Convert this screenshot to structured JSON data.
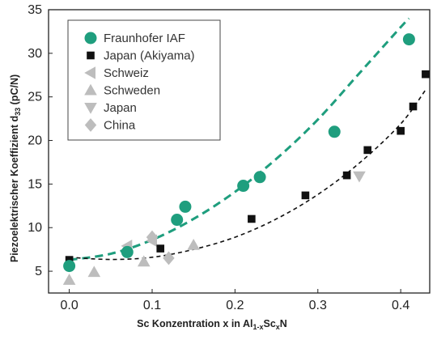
{
  "chart_data": {
    "type": "scatter",
    "xlabel": "Sc Konzentration x in Al1-xScxN",
    "ylabel": "Piezoelektrischer Koeffizient d33 (pC/N)",
    "xlim": [
      -0.025,
      0.435
    ],
    "ylim": [
      2.5,
      35
    ],
    "xticks": [
      0.0,
      0.1,
      0.2,
      0.3,
      0.4
    ],
    "yticks": [
      5,
      10,
      15,
      20,
      25,
      30,
      35
    ],
    "xtick_labels": [
      "0.0",
      "0.1",
      "0.2",
      "0.3",
      "0.4"
    ],
    "ytick_labels": [
      "5",
      "10",
      "15",
      "20",
      "25",
      "30",
      "35"
    ],
    "grid": false,
    "legend_position": "top-left",
    "series": [
      {
        "name": "Fraunhofer IAF",
        "marker": "circle",
        "color": "#1f9e7e",
        "points": [
          [
            0.0,
            5.6
          ],
          [
            0.07,
            7.2
          ],
          [
            0.13,
            10.9
          ],
          [
            0.14,
            12.4
          ],
          [
            0.21,
            14.8
          ],
          [
            0.23,
            15.8
          ],
          [
            0.32,
            21.0
          ],
          [
            0.41,
            31.6
          ]
        ]
      },
      {
        "name": "Japan (Akiyama)",
        "marker": "square",
        "color": "#111111",
        "points": [
          [
            0.0,
            6.3
          ],
          [
            0.11,
            7.6
          ],
          [
            0.22,
            11.0
          ],
          [
            0.285,
            13.7
          ],
          [
            0.335,
            16.0
          ],
          [
            0.36,
            18.9
          ],
          [
            0.4,
            21.1
          ],
          [
            0.415,
            23.9
          ],
          [
            0.43,
            27.6
          ]
        ]
      },
      {
        "name": "Schweiz",
        "marker": "triangle-left",
        "color": "#bdbdbd",
        "points": [
          [
            0.07,
            7.9
          ],
          [
            0.1,
            8.5
          ]
        ]
      },
      {
        "name": "Schweden",
        "marker": "triangle-up",
        "color": "#bdbdbd",
        "points": [
          [
            0.0,
            4.0
          ],
          [
            0.03,
            4.9
          ],
          [
            0.09,
            6.1
          ],
          [
            0.15,
            8.0
          ]
        ]
      },
      {
        "name": "Japan",
        "marker": "triangle-down",
        "color": "#bdbdbd",
        "points": [
          [
            0.35,
            15.9
          ]
        ]
      },
      {
        "name": "China",
        "marker": "diamond",
        "color": "#bdbdbd",
        "points": [
          [
            0.1,
            8.9
          ],
          [
            0.12,
            6.5
          ]
        ]
      }
    ],
    "fit_lines": [
      {
        "series": "Fraunhofer IAF",
        "style": "dashed",
        "color": "#1f9e7e",
        "points": [
          [
            0.0,
            6.3
          ],
          [
            0.05,
            7.0
          ],
          [
            0.1,
            8.6
          ],
          [
            0.15,
            11.0
          ],
          [
            0.2,
            14.1
          ],
          [
            0.25,
            17.9
          ],
          [
            0.3,
            22.4
          ],
          [
            0.35,
            27.7
          ],
          [
            0.4,
            33.0
          ],
          [
            0.41,
            34.0
          ]
        ]
      },
      {
        "series": "Japan (Akiyama)",
        "style": "dashed",
        "color": "#111111",
        "points": [
          [
            0.0,
            6.6
          ],
          [
            0.05,
            6.35
          ],
          [
            0.1,
            6.6
          ],
          [
            0.15,
            7.5
          ],
          [
            0.2,
            8.9
          ],
          [
            0.25,
            11.0
          ],
          [
            0.3,
            13.8
          ],
          [
            0.35,
            17.4
          ],
          [
            0.4,
            21.9
          ],
          [
            0.43,
            25.8
          ]
        ]
      }
    ]
  }
}
